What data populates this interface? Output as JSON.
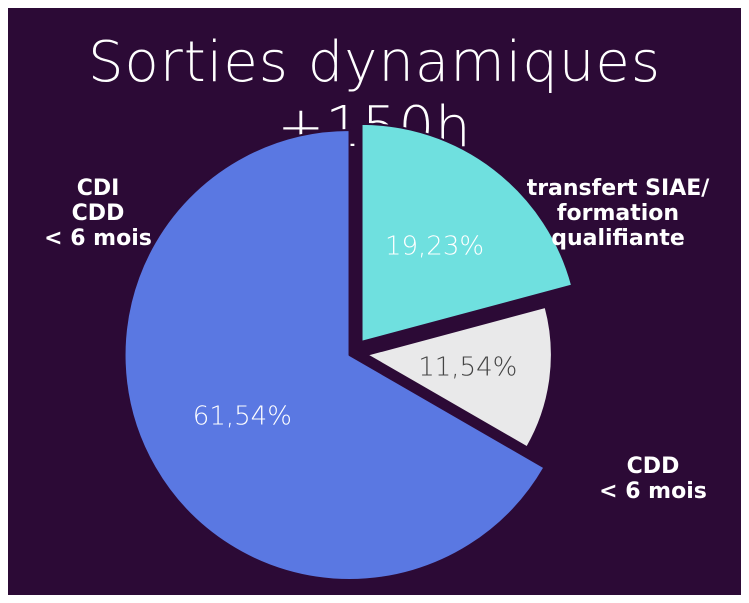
{
  "chart_data": {
    "type": "pie",
    "title": "Sorties dynamiques +150h",
    "categories": [
      "transfert SIAE/\nformation\nqualifiante",
      "CDD\n< 6 mois",
      "CDI\nCDD\n< 6 mois"
    ],
    "values": [
      19.23,
      11.54,
      61.54
    ],
    "value_labels": [
      "19,23%",
      "11,54%",
      "61,54%"
    ],
    "colors": [
      "#6fe0df",
      "#e9e9ea",
      "#5a78e2"
    ]
  }
}
